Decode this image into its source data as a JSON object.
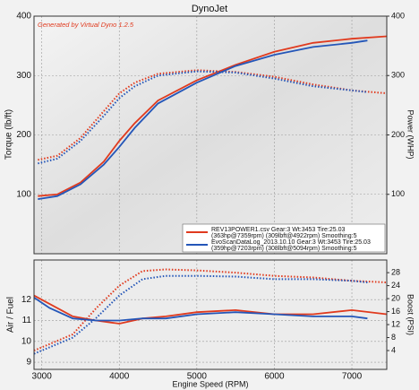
{
  "chart_data": [
    {
      "type": "line",
      "title": "DynoJet",
      "annotation": "Generated by Virtual Dyno 1.2.5",
      "ylabel": "Torque (lb/ft)",
      "y2label": "Power (WHP)",
      "xlim": [
        2900,
        7450
      ],
      "ylim": [
        0,
        400
      ],
      "yticks": [
        100,
        200,
        300,
        400
      ],
      "y2lim": [
        0,
        400
      ],
      "y2ticks": [
        100,
        200,
        300,
        400
      ],
      "grid": true,
      "series": [
        {
          "name": "REV13POWER1.csv Gear:3 Wt:3453 Tire:25.03",
          "detail": "(363hp@7359rpm) (309lbft@4922rpm) Smoothing:5",
          "color": "#e03a1e",
          "x": [
            2950,
            3200,
            3500,
            3800,
            4000,
            4200,
            4500,
            5000,
            5500,
            6000,
            6500,
            7000,
            7450
          ],
          "torque": [
            158,
            165,
            195,
            240,
            270,
            288,
            303,
            309,
            306,
            298,
            285,
            275,
            270
          ],
          "power": [
            97,
            100,
            120,
            155,
            190,
            220,
            258,
            292,
            318,
            340,
            355,
            362,
            366
          ]
        },
        {
          "name": "EvoScanDataLog_2013.10.10 Gear:3 Wt:3453 Tire:25.03",
          "detail": "(359hp@7203rpm) (308lbft@5094rpm) Smoothing:5",
          "color": "#2456b8",
          "x": [
            2950,
            3200,
            3500,
            3800,
            4000,
            4200,
            4500,
            5000,
            5500,
            6000,
            6500,
            7000,
            7200
          ],
          "torque": [
            152,
            160,
            190,
            232,
            262,
            282,
            300,
            307,
            305,
            295,
            282,
            275,
            272
          ],
          "power": [
            92,
            97,
            117,
            150,
            180,
            212,
            253,
            288,
            316,
            335,
            348,
            355,
            359
          ]
        }
      ]
    },
    {
      "type": "line",
      "xlabel": "Engine Speed (RPM)",
      "ylabel": "Air / Fuel",
      "y2label": "Boost (PSI)",
      "xlim": [
        2900,
        7450
      ],
      "xticks": [
        3000,
        4000,
        5000,
        6000,
        7000
      ],
      "ylim": [
        8.66,
        13.9
      ],
      "yticks": [
        9,
        10,
        11,
        12
      ],
      "y2lim": [
        -1.8,
        31.9
      ],
      "y2ticks": [
        4,
        8,
        12,
        16,
        20,
        24,
        28
      ],
      "grid": true,
      "series": [
        {
          "color": "#e03a1e",
          "x": [
            2900,
            3100,
            3400,
            3700,
            4000,
            4300,
            4600,
            5000,
            5500,
            6000,
            6500,
            7000,
            7450
          ],
          "afr": [
            12.2,
            11.8,
            11.2,
            11.0,
            10.85,
            11.1,
            11.2,
            11.4,
            11.5,
            11.3,
            11.3,
            11.5,
            11.3
          ],
          "boost": [
            4,
            6,
            9,
            17,
            24,
            28.5,
            29,
            28.7,
            28,
            27,
            26.5,
            25.5,
            25
          ]
        },
        {
          "color": "#2456b8",
          "x": [
            2900,
            3100,
            3400,
            3700,
            4000,
            4300,
            4600,
            5000,
            5500,
            6000,
            6500,
            7000,
            7200
          ],
          "afr": [
            12.1,
            11.6,
            11.1,
            11.0,
            11.0,
            11.1,
            11.1,
            11.3,
            11.4,
            11.3,
            11.2,
            11.2,
            11.1
          ],
          "boost": [
            3,
            5,
            8,
            14,
            21,
            26,
            27,
            27,
            26.8,
            26,
            26,
            25.5,
            25
          ]
        }
      ]
    }
  ]
}
